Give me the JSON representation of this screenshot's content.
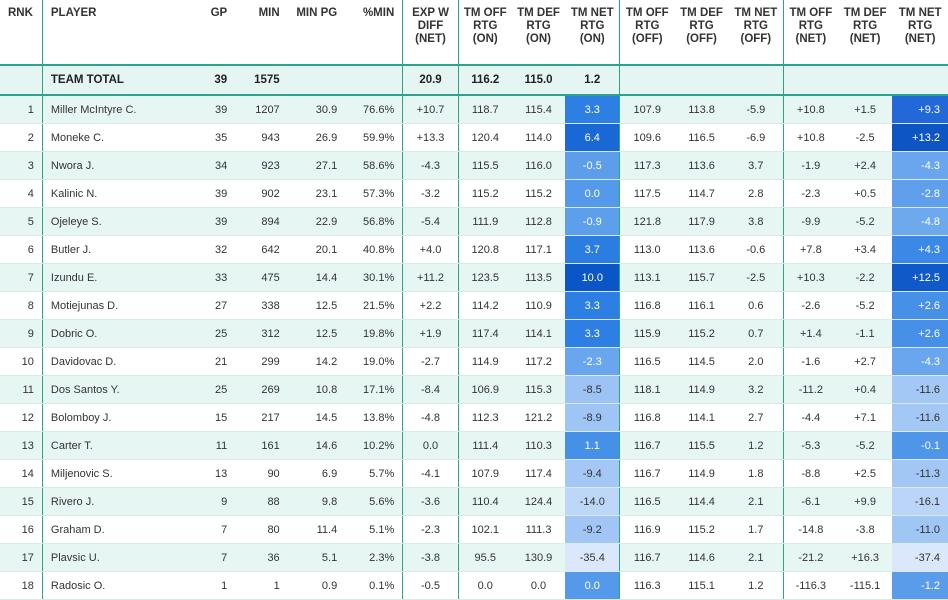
{
  "headers": {
    "rnk": "RNK",
    "player": "PLAYER",
    "gp": "GP",
    "min": "MIN",
    "minpg": "MIN PG",
    "pctmin": "%MIN",
    "expw": [
      "EXP W",
      "DIFF",
      "(NET)"
    ],
    "on_off": [
      "TM OFF",
      "RTG",
      "(ON)"
    ],
    "on_def": [
      "TM DEF",
      "RTG",
      "(ON)"
    ],
    "on_net": [
      "TM NET",
      "RTG",
      "(ON)"
    ],
    "off_off": [
      "TM OFF",
      "RTG",
      "(OFF)"
    ],
    "off_def": [
      "TM DEF",
      "RTG",
      "(OFF)"
    ],
    "off_net": [
      "TM NET",
      "RTG",
      "(OFF)"
    ],
    "net_off": [
      "TM OFF",
      "RTG",
      "(NET)"
    ],
    "net_def": [
      "TM DEF",
      "RTG",
      "(NET)"
    ],
    "net_net": [
      "TM NET",
      "RTG",
      "(NET)"
    ]
  },
  "team_total": {
    "label": "TEAM TOTAL",
    "gp": "39",
    "min": "1575",
    "expw": "20.9",
    "on_off": "116.2",
    "on_def": "115.0",
    "on_net": "1.2"
  },
  "colors": {
    "accent": "#2aa58a",
    "zebra": "#e6f7f3",
    "heat_high": "#0a56c6",
    "heat_low": "#cfe0fb"
  },
  "rows": [
    {
      "rnk": "1",
      "player": "Miller McIntyre C.",
      "gp": "39",
      "min": "1207",
      "minpg": "30.9",
      "pctmin": "76.6%",
      "expw": "+10.7",
      "on_off": "118.7",
      "on_def": "115.4",
      "on_net": "3.3",
      "off_off": "107.9",
      "off_def": "113.8",
      "off_net": "-5.9",
      "net_off": "+10.8",
      "net_def": "+1.5",
      "net_net": "+9.3",
      "on_color": "#2d7fe3",
      "net_color": "#2268d8"
    },
    {
      "rnk": "2",
      "player": "Moneke C.",
      "gp": "35",
      "min": "943",
      "minpg": "26.9",
      "pctmin": "59.9%",
      "expw": "+13.3",
      "on_off": "120.4",
      "on_def": "114.0",
      "on_net": "6.4",
      "off_off": "109.6",
      "off_def": "116.5",
      "off_net": "-6.9",
      "net_off": "+10.8",
      "net_def": "-2.5",
      "net_net": "+13.2",
      "on_color": "#1a68d6",
      "net_color": "#0e55c4"
    },
    {
      "rnk": "3",
      "player": "Nwora J.",
      "gp": "34",
      "min": "923",
      "minpg": "27.1",
      "pctmin": "58.6%",
      "expw": "-4.3",
      "on_off": "115.5",
      "on_def": "116.0",
      "on_net": "-0.5",
      "off_off": "117.3",
      "off_def": "113.6",
      "off_net": "3.7",
      "net_off": "-1.9",
      "net_def": "+2.4",
      "net_net": "-4.3",
      "on_color": "#5c9eea",
      "net_color": "#6aa6ee"
    },
    {
      "rnk": "4",
      "player": "Kalinic N.",
      "gp": "39",
      "min": "902",
      "minpg": "23.1",
      "pctmin": "57.3%",
      "expw": "-3.2",
      "on_off": "115.2",
      "on_def": "115.2",
      "on_net": "0.0",
      "off_off": "117.5",
      "off_def": "114.7",
      "off_net": "2.8",
      "net_off": "-2.3",
      "net_def": "+0.5",
      "net_net": "-2.8",
      "on_color": "#5599ea",
      "net_color": "#5f9fec"
    },
    {
      "rnk": "5",
      "player": "Ojeleye S.",
      "gp": "39",
      "min": "894",
      "minpg": "22.9",
      "pctmin": "56.8%",
      "expw": "-5.4",
      "on_off": "111.9",
      "on_def": "112.8",
      "on_net": "-0.9",
      "off_off": "121.8",
      "off_def": "117.9",
      "off_net": "3.8",
      "net_off": "-9.9",
      "net_def": "-5.2",
      "net_net": "-4.8",
      "on_color": "#5e9feb",
      "net_color": "#6ea9ee"
    },
    {
      "rnk": "6",
      "player": "Butler J.",
      "gp": "32",
      "min": "642",
      "minpg": "20.1",
      "pctmin": "40.8%",
      "expw": "+4.0",
      "on_off": "120.8",
      "on_def": "117.1",
      "on_net": "3.7",
      "off_off": "113.0",
      "off_def": "113.6",
      "off_net": "-0.6",
      "net_off": "+7.8",
      "net_def": "+3.4",
      "net_net": "+4.3",
      "on_color": "#2b7de2",
      "net_color": "#3c88e6"
    },
    {
      "rnk": "7",
      "player": "Izundu E.",
      "gp": "33",
      "min": "475",
      "minpg": "14.4",
      "pctmin": "30.1%",
      "expw": "+11.2",
      "on_off": "123.5",
      "on_def": "113.5",
      "on_net": "10.0",
      "off_off": "113.1",
      "off_def": "115.7",
      "off_net": "-2.5",
      "net_off": "+10.3",
      "net_def": "-2.2",
      "net_net": "+12.5",
      "on_color": "#0a56c6",
      "net_color": "#1059c8"
    },
    {
      "rnk": "8",
      "player": "Motiejunas D.",
      "gp": "27",
      "min": "338",
      "minpg": "12.5",
      "pctmin": "21.5%",
      "expw": "+2.2",
      "on_off": "114.2",
      "on_def": "110.9",
      "on_net": "3.3",
      "off_off": "116.8",
      "off_def": "116.1",
      "off_net": "0.6",
      "net_off": "-2.6",
      "net_def": "-5.2",
      "net_net": "+2.6",
      "on_color": "#2d7fe3",
      "net_color": "#4690e8"
    },
    {
      "rnk": "9",
      "player": "Dobric O.",
      "gp": "25",
      "min": "312",
      "minpg": "12.5",
      "pctmin": "19.8%",
      "expw": "+1.9",
      "on_off": "117.4",
      "on_def": "114.1",
      "on_net": "3.3",
      "off_off": "115.9",
      "off_def": "115.2",
      "off_net": "0.7",
      "net_off": "+1.4",
      "net_def": "-1.1",
      "net_net": "+2.6",
      "on_color": "#2d7fe3",
      "net_color": "#4690e8"
    },
    {
      "rnk": "10",
      "player": "Davidovac D.",
      "gp": "21",
      "min": "299",
      "minpg": "14.2",
      "pctmin": "19.0%",
      "expw": "-2.7",
      "on_off": "114.9",
      "on_def": "117.2",
      "on_net": "-2.3",
      "off_off": "116.5",
      "off_def": "114.5",
      "off_net": "2.0",
      "net_off": "-1.6",
      "net_def": "+2.7",
      "net_net": "-4.3",
      "on_color": "#6aa6ee",
      "net_color": "#6aa6ee"
    },
    {
      "rnk": "11",
      "player": "Dos Santos Y.",
      "gp": "25",
      "min": "269",
      "minpg": "10.8",
      "pctmin": "17.1%",
      "expw": "-8.4",
      "on_off": "106.9",
      "on_def": "115.3",
      "on_net": "-8.5",
      "off_off": "118.1",
      "off_def": "114.9",
      "off_net": "3.2",
      "net_off": "-11.2",
      "net_def": "+0.4",
      "net_net": "-11.6",
      "on_color": "#9cc3f4",
      "net_color": "#a4c8f5"
    },
    {
      "rnk": "12",
      "player": "Bolomboy J.",
      "gp": "15",
      "min": "217",
      "minpg": "14.5",
      "pctmin": "13.8%",
      "expw": "-4.8",
      "on_off": "112.3",
      "on_def": "121.2",
      "on_net": "-8.9",
      "off_off": "116.8",
      "off_def": "114.1",
      "off_net": "2.7",
      "net_off": "-4.4",
      "net_def": "+7.1",
      "net_net": "-11.6",
      "on_color": "#9fc5f4",
      "net_color": "#a4c8f5"
    },
    {
      "rnk": "13",
      "player": "Carter T.",
      "gp": "11",
      "min": "161",
      "minpg": "14.6",
      "pctmin": "10.2%",
      "expw": "0.0",
      "on_off": "111.4",
      "on_def": "110.3",
      "on_net": "1.1",
      "off_off": "116.7",
      "off_def": "115.5",
      "off_net": "1.2",
      "net_off": "-5.3",
      "net_def": "-5.2",
      "net_net": "-0.1",
      "on_color": "#4690e8",
      "net_color": "#4f96e9"
    },
    {
      "rnk": "14",
      "player": "Miljenovic S.",
      "gp": "13",
      "min": "90",
      "minpg": "6.9",
      "pctmin": "5.7%",
      "expw": "-4.1",
      "on_off": "107.9",
      "on_def": "117.4",
      "on_net": "-9.4",
      "off_off": "116.7",
      "off_def": "114.9",
      "off_net": "1.8",
      "net_off": "-8.8",
      "net_def": "+2.5",
      "net_net": "-11.3",
      "on_color": "#a3c8f5",
      "net_color": "#a2c7f5"
    },
    {
      "rnk": "15",
      "player": "Rivero J.",
      "gp": "9",
      "min": "88",
      "minpg": "9.8",
      "pctmin": "5.6%",
      "expw": "-3.6",
      "on_off": "110.4",
      "on_def": "124.4",
      "on_net": "-14.0",
      "off_off": "116.5",
      "off_def": "114.4",
      "off_net": "2.1",
      "net_off": "-6.1",
      "net_def": "+9.9",
      "net_net": "-16.1",
      "on_color": "#bdd7f8",
      "net_color": "#bad5f8"
    },
    {
      "rnk": "16",
      "player": "Graham D.",
      "gp": "7",
      "min": "80",
      "minpg": "11.4",
      "pctmin": "5.1%",
      "expw": "-2.3",
      "on_off": "102.1",
      "on_def": "111.3",
      "on_net": "-9.2",
      "off_off": "116.9",
      "off_def": "115.2",
      "off_net": "1.7",
      "net_off": "-14.8",
      "net_def": "-3.8",
      "net_net": "-11.0",
      "on_color": "#a1c6f5",
      "net_color": "#a0c6f4"
    },
    {
      "rnk": "17",
      "player": "Plavsic U.",
      "gp": "7",
      "min": "36",
      "minpg": "5.1",
      "pctmin": "2.3%",
      "expw": "-3.8",
      "on_off": "95.5",
      "on_def": "130.9",
      "on_net": "-35.4",
      "off_off": "116.7",
      "off_def": "114.6",
      "off_net": "2.1",
      "net_off": "-21.2",
      "net_def": "+16.3",
      "net_net": "-37.4",
      "on_color": "#dbe8fc",
      "net_color": "#dbe8fc"
    },
    {
      "rnk": "18",
      "player": "Radosic O.",
      "gp": "1",
      "min": "1",
      "minpg": "0.9",
      "pctmin": "0.1%",
      "expw": "-0.5",
      "on_off": "0.0",
      "on_def": "0.0",
      "on_net": "0.0",
      "off_off": "116.3",
      "off_def": "115.1",
      "off_net": "1.2",
      "net_off": "-116.3",
      "net_def": "-115.1",
      "net_net": "-1.2",
      "on_color": "#5599ea",
      "net_color": "#5a9bea"
    }
  ]
}
